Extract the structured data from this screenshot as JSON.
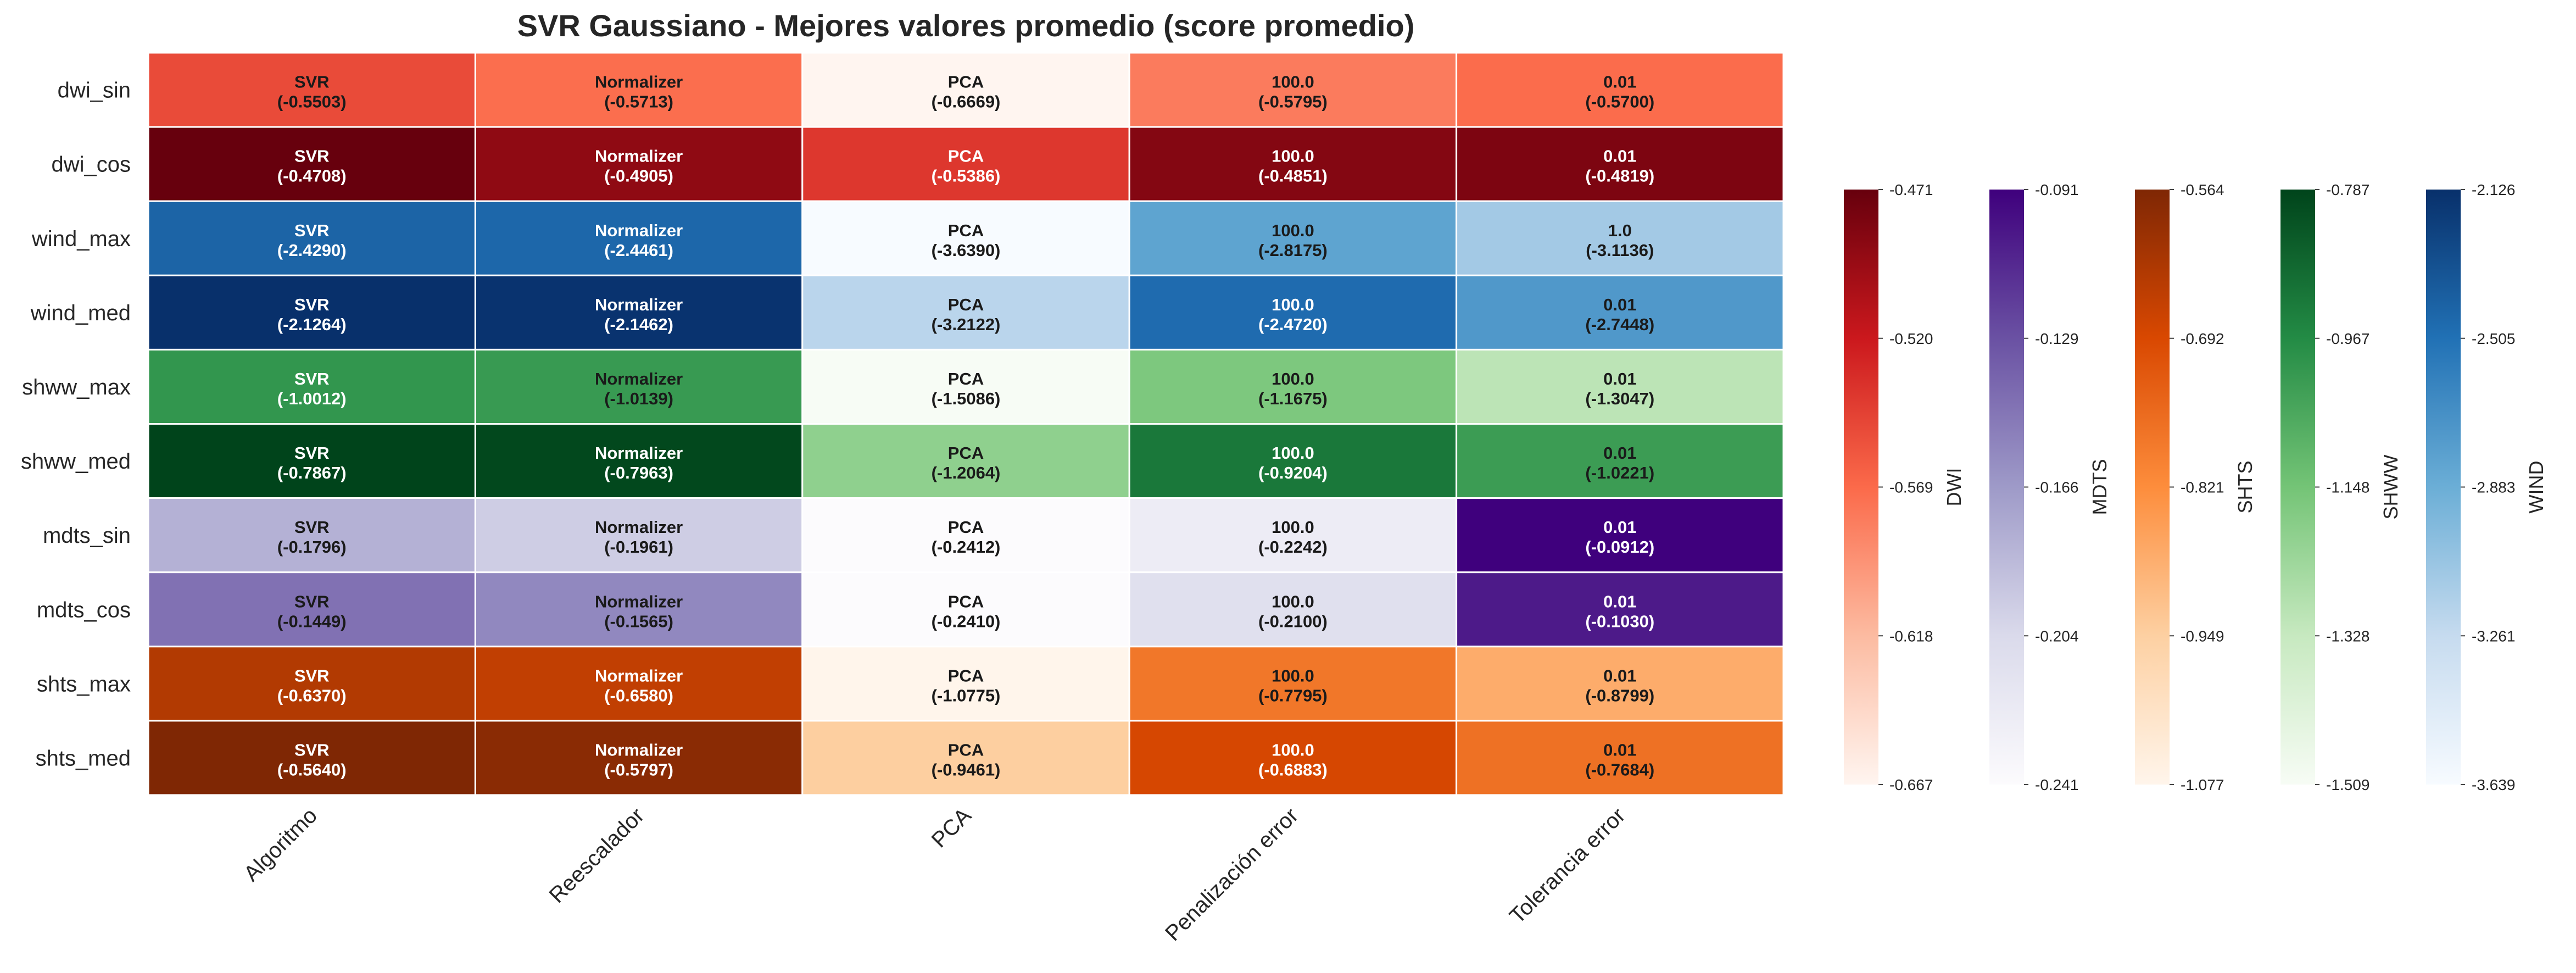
{
  "chart_data": {
    "type": "heatmap",
    "title": "SVR Gaussiano - Mejores valores promedio (score promedio)",
    "columns": [
      "Algoritmo",
      "Reescalador",
      "PCA",
      "Penalización error",
      "Tolerancia error"
    ],
    "rows": [
      {
        "label": "dwi_sin",
        "group": "DWI",
        "cells": [
          {
            "name": "SVR",
            "score": -0.5503
          },
          {
            "name": "Normalizer",
            "score": -0.5713
          },
          {
            "name": "PCA",
            "score": -0.6669
          },
          {
            "name": "100.0",
            "score": -0.5795
          },
          {
            "name": "0.01",
            "score": -0.57
          }
        ]
      },
      {
        "label": "dwi_cos",
        "group": "DWI",
        "cells": [
          {
            "name": "SVR",
            "score": -0.4708
          },
          {
            "name": "Normalizer",
            "score": -0.4905
          },
          {
            "name": "PCA",
            "score": -0.5386
          },
          {
            "name": "100.0",
            "score": -0.4851
          },
          {
            "name": "0.01",
            "score": -0.4819
          }
        ]
      },
      {
        "label": "wind_max",
        "group": "WIND",
        "cells": [
          {
            "name": "SVR",
            "score": -2.429
          },
          {
            "name": "Normalizer",
            "score": -2.4461
          },
          {
            "name": "PCA",
            "score": -3.639
          },
          {
            "name": "100.0",
            "score": -2.8175
          },
          {
            "name": "1.0",
            "score": -3.1136
          }
        ]
      },
      {
        "label": "wind_med",
        "group": "WIND",
        "cells": [
          {
            "name": "SVR",
            "score": -2.1264
          },
          {
            "name": "Normalizer",
            "score": -2.1462
          },
          {
            "name": "PCA",
            "score": -3.2122
          },
          {
            "name": "100.0",
            "score": -2.472
          },
          {
            "name": "0.01",
            "score": -2.7448
          }
        ]
      },
      {
        "label": "shww_max",
        "group": "SHWW",
        "cells": [
          {
            "name": "SVR",
            "score": -1.0012
          },
          {
            "name": "Normalizer",
            "score": -1.0139
          },
          {
            "name": "PCA",
            "score": -1.5086
          },
          {
            "name": "100.0",
            "score": -1.1675
          },
          {
            "name": "0.01",
            "score": -1.3047
          }
        ]
      },
      {
        "label": "shww_med",
        "group": "SHWW",
        "cells": [
          {
            "name": "SVR",
            "score": -0.7867
          },
          {
            "name": "Normalizer",
            "score": -0.7963
          },
          {
            "name": "PCA",
            "score": -1.2064
          },
          {
            "name": "100.0",
            "score": -0.9204
          },
          {
            "name": "0.01",
            "score": -1.0221
          }
        ]
      },
      {
        "label": "mdts_sin",
        "group": "MDTS",
        "cells": [
          {
            "name": "SVR",
            "score": -0.1796
          },
          {
            "name": "Normalizer",
            "score": -0.1961
          },
          {
            "name": "PCA",
            "score": -0.2412
          },
          {
            "name": "100.0",
            "score": -0.2242
          },
          {
            "name": "0.01",
            "score": -0.0912
          }
        ]
      },
      {
        "label": "mdts_cos",
        "group": "MDTS",
        "cells": [
          {
            "name": "SVR",
            "score": -0.1449
          },
          {
            "name": "Normalizer",
            "score": -0.1565
          },
          {
            "name": "PCA",
            "score": -0.241
          },
          {
            "name": "100.0",
            "score": -0.21
          },
          {
            "name": "0.01",
            "score": -0.103
          }
        ]
      },
      {
        "label": "shts_max",
        "group": "SHTS",
        "cells": [
          {
            "name": "SVR",
            "score": -0.637
          },
          {
            "name": "Normalizer",
            "score": -0.658
          },
          {
            "name": "PCA",
            "score": -1.0775
          },
          {
            "name": "100.0",
            "score": -0.7795
          },
          {
            "name": "0.01",
            "score": -0.8799
          }
        ]
      },
      {
        "label": "shts_med",
        "group": "SHTS",
        "cells": [
          {
            "name": "SVR",
            "score": -0.564
          },
          {
            "name": "Normalizer",
            "score": -0.5797
          },
          {
            "name": "PCA",
            "score": -0.9461
          },
          {
            "name": "100.0",
            "score": -0.6883
          },
          {
            "name": "0.01",
            "score": -0.7684
          }
        ]
      }
    ],
    "colorbars": [
      {
        "label": "DWI",
        "colormap": "Reds",
        "colors": [
          "#fff5f0",
          "#fcbba1",
          "#fb6a4a",
          "#cb181d",
          "#67000d"
        ],
        "vmin": -0.667,
        "vmax": -0.471,
        "ticks": [
          "-0.471",
          "-0.520",
          "-0.569",
          "-0.618",
          "-0.667"
        ]
      },
      {
        "label": "MDTS",
        "colormap": "Purples",
        "colors": [
          "#fcfbfd",
          "#dadaeb",
          "#9e9ac8",
          "#6a51a3",
          "#3f007d"
        ],
        "vmin": -0.241,
        "vmax": -0.091,
        "ticks": [
          "-0.091",
          "-0.129",
          "-0.166",
          "-0.204",
          "-0.241"
        ]
      },
      {
        "label": "SHTS",
        "colormap": "Oranges",
        "colors": [
          "#fff5eb",
          "#fdd0a2",
          "#fd8d3c",
          "#d94801",
          "#7f2704"
        ],
        "vmin": -1.077,
        "vmax": -0.564,
        "ticks": [
          "-0.564",
          "-0.692",
          "-0.821",
          "-0.949",
          "-1.077"
        ]
      },
      {
        "label": "SHWW",
        "colormap": "Greens",
        "colors": [
          "#f7fcf5",
          "#c7e9c0",
          "#74c476",
          "#238b45",
          "#00441b"
        ],
        "vmin": -1.509,
        "vmax": -0.787,
        "ticks": [
          "-0.787",
          "-0.967",
          "-1.148",
          "-1.328",
          "-1.509"
        ]
      },
      {
        "label": "WIND",
        "colormap": "Blues",
        "colors": [
          "#f7fbff",
          "#c6dbef",
          "#6baed6",
          "#2171b5",
          "#08306b"
        ],
        "vmin": -3.639,
        "vmax": -2.126,
        "ticks": [
          "-2.126",
          "-2.505",
          "-2.883",
          "-3.261",
          "-3.639"
        ]
      }
    ]
  }
}
